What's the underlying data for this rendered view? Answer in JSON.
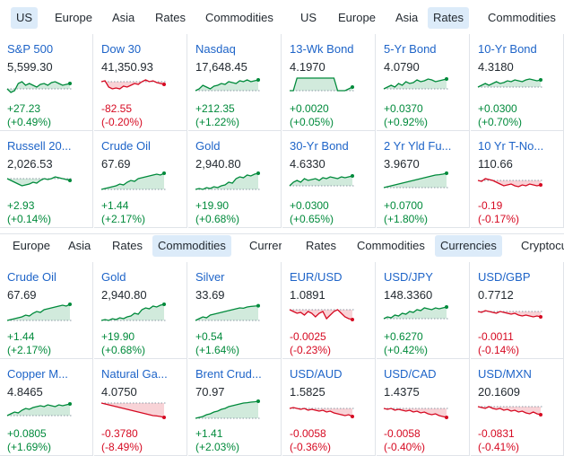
{
  "colors": {
    "up": "#008a3b",
    "down": "#d60a22",
    "tab_active_bg": "#dcebf9",
    "link": "#1e64c8"
  },
  "panels": [
    {
      "tabs": [
        {
          "label": "US",
          "active": true
        },
        {
          "label": "Europe",
          "active": false
        },
        {
          "label": "Asia",
          "active": false
        },
        {
          "label": "Rates",
          "active": false
        },
        {
          "label": "Commodities",
          "active": false
        }
      ],
      "cards": [
        {
          "name": "S&P 500",
          "price": "5,599.30",
          "chg": "+27.23",
          "pct": "(+0.49%)",
          "dir": "up",
          "spark": [
            0.3,
            0.1,
            0.2,
            0.6,
            0.7,
            0.5,
            0.6,
            0.5,
            0.4,
            0.55,
            0.6,
            0.5,
            0.65,
            0.7,
            0.6,
            0.5,
            0.55,
            0.6
          ]
        },
        {
          "name": "Dow 30",
          "price": "41,350.93",
          "chg": "-82.55",
          "pct": "(-0.20%)",
          "dir": "down",
          "spark": [
            0.7,
            0.75,
            0.4,
            0.3,
            0.35,
            0.3,
            0.45,
            0.4,
            0.5,
            0.6,
            0.55,
            0.7,
            0.8,
            0.7,
            0.75,
            0.65,
            0.6,
            0.55
          ]
        },
        {
          "name": "Nasdaq",
          "price": "17,648.45",
          "chg": "+212.35",
          "pct": "(+1.22%)",
          "dir": "up",
          "spark": [
            0.2,
            0.3,
            0.5,
            0.4,
            0.3,
            0.45,
            0.5,
            0.6,
            0.55,
            0.7,
            0.65,
            0.6,
            0.75,
            0.7,
            0.8,
            0.7,
            0.75,
            0.8
          ]
        },
        {
          "name": "Russell 20...",
          "price": "2,026.53",
          "chg": "+2.93",
          "pct": "(+0.14%)",
          "dir": "up",
          "spark": [
            0.7,
            0.6,
            0.5,
            0.4,
            0.3,
            0.35,
            0.4,
            0.5,
            0.45,
            0.6,
            0.7,
            0.65,
            0.7,
            0.8,
            0.75,
            0.7,
            0.65,
            0.6
          ]
        },
        {
          "name": "Crude Oil",
          "price": "67.69",
          "chg": "+1.44",
          "pct": "(+2.17%)",
          "dir": "up",
          "spark": [
            0.1,
            0.15,
            0.2,
            0.25,
            0.3,
            0.4,
            0.35,
            0.5,
            0.6,
            0.55,
            0.7,
            0.75,
            0.8,
            0.85,
            0.9,
            0.95,
            0.9,
            1.0
          ]
        },
        {
          "name": "Gold",
          "price": "2,940.80",
          "chg": "+19.90",
          "pct": "(+0.68%)",
          "dir": "up",
          "spark": [
            0.1,
            0.15,
            0.1,
            0.2,
            0.15,
            0.25,
            0.2,
            0.3,
            0.35,
            0.5,
            0.45,
            0.7,
            0.8,
            0.75,
            0.9,
            0.85,
            0.95,
            1.0
          ]
        }
      ]
    },
    {
      "tabs": [
        {
          "label": "US",
          "active": false
        },
        {
          "label": "Europe",
          "active": false
        },
        {
          "label": "Asia",
          "active": false
        },
        {
          "label": "Rates",
          "active": true
        },
        {
          "label": "Commodities",
          "active": false
        }
      ],
      "cards": [
        {
          "name": "13-Wk Bond",
          "price": "4.1970",
          "chg": "+0.0020",
          "pct": "(+0.05%)",
          "dir": "up",
          "spark": [
            0.2,
            0.2,
            0.9,
            0.9,
            0.9,
            0.9,
            0.9,
            0.9,
            0.9,
            0.9,
            0.9,
            0.9,
            0.9,
            0.2,
            0.2,
            0.2,
            0.3,
            0.4
          ]
        },
        {
          "name": "5-Yr Bond",
          "price": "4.0790",
          "chg": "+0.0370",
          "pct": "(+0.92%)",
          "dir": "up",
          "spark": [
            0.3,
            0.4,
            0.5,
            0.4,
            0.6,
            0.5,
            0.7,
            0.6,
            0.65,
            0.8,
            0.7,
            0.75,
            0.85,
            0.8,
            0.7,
            0.75,
            0.8,
            0.85
          ]
        },
        {
          "name": "10-Yr Bond",
          "price": "4.3180",
          "chg": "+0.0300",
          "pct": "(+0.70%)",
          "dir": "up",
          "spark": [
            0.4,
            0.5,
            0.6,
            0.5,
            0.6,
            0.7,
            0.6,
            0.65,
            0.75,
            0.7,
            0.8,
            0.75,
            0.7,
            0.8,
            0.85,
            0.8,
            0.75,
            0.8
          ]
        },
        {
          "name": "30-Yr Bond",
          "price": "4.6330",
          "chg": "+0.0300",
          "pct": "(+0.65%)",
          "dir": "up",
          "spark": [
            0.3,
            0.5,
            0.6,
            0.5,
            0.7,
            0.6,
            0.65,
            0.7,
            0.6,
            0.75,
            0.7,
            0.8,
            0.75,
            0.7,
            0.8,
            0.75,
            0.8,
            0.85
          ]
        },
        {
          "name": "2 Yr Yld Fu...",
          "price": "3.9670",
          "chg": "+0.0700",
          "pct": "(+1.80%)",
          "dir": "up",
          "spark": [
            0.2,
            0.25,
            0.3,
            0.35,
            0.4,
            0.45,
            0.5,
            0.55,
            0.6,
            0.65,
            0.7,
            0.75,
            0.8,
            0.85,
            0.9,
            0.92,
            0.95,
            1.0
          ]
        },
        {
          "name": "10 Yr T-No...",
          "price": "110.66",
          "chg": "-0.19",
          "pct": "(-0.17%)",
          "dir": "down",
          "spark": [
            0.6,
            0.55,
            0.7,
            0.65,
            0.6,
            0.5,
            0.4,
            0.3,
            0.35,
            0.4,
            0.3,
            0.25,
            0.35,
            0.3,
            0.4,
            0.35,
            0.3,
            0.35
          ]
        }
      ]
    },
    {
      "tabs": [
        {
          "label": "Europe",
          "active": false
        },
        {
          "label": "Asia",
          "active": false
        },
        {
          "label": "Rates",
          "active": false
        },
        {
          "label": "Commodities",
          "active": true
        },
        {
          "label": "Currer",
          "active": false
        }
      ],
      "cards": [
        {
          "name": "Crude Oil",
          "price": "67.69",
          "chg": "+1.44",
          "pct": "(+2.17%)",
          "dir": "up",
          "spark": [
            0.1,
            0.15,
            0.2,
            0.25,
            0.3,
            0.4,
            0.35,
            0.5,
            0.6,
            0.55,
            0.7,
            0.75,
            0.8,
            0.85,
            0.9,
            0.95,
            0.9,
            1.0
          ]
        },
        {
          "name": "Gold",
          "price": "2,940.80",
          "chg": "+19.90",
          "pct": "(+0.68%)",
          "dir": "up",
          "spark": [
            0.1,
            0.15,
            0.1,
            0.2,
            0.15,
            0.25,
            0.2,
            0.3,
            0.35,
            0.5,
            0.45,
            0.7,
            0.8,
            0.75,
            0.9,
            0.85,
            0.95,
            1.0
          ]
        },
        {
          "name": "Silver",
          "price": "33.69",
          "chg": "+0.54",
          "pct": "(+1.64%)",
          "dir": "up",
          "spark": [
            0.1,
            0.2,
            0.3,
            0.25,
            0.4,
            0.45,
            0.5,
            0.55,
            0.6,
            0.65,
            0.7,
            0.75,
            0.8,
            0.78,
            0.85,
            0.88,
            0.9,
            0.92
          ]
        },
        {
          "name": "Copper M...",
          "price": "4.8465",
          "chg": "+0.0805",
          "pct": "(+1.69%)",
          "dir": "up",
          "spark": [
            0.2,
            0.3,
            0.4,
            0.35,
            0.5,
            0.6,
            0.55,
            0.65,
            0.7,
            0.75,
            0.7,
            0.8,
            0.75,
            0.7,
            0.8,
            0.75,
            0.8,
            0.85
          ]
        },
        {
          "name": "Natural Ga...",
          "price": "4.0750",
          "chg": "-0.3780",
          "pct": "(-8.49%)",
          "dir": "down",
          "spark": [
            0.9,
            0.85,
            0.8,
            0.75,
            0.7,
            0.65,
            0.6,
            0.55,
            0.5,
            0.45,
            0.4,
            0.35,
            0.3,
            0.25,
            0.2,
            0.18,
            0.15,
            0.1
          ]
        },
        {
          "name": "Brent Crud...",
          "price": "70.97",
          "chg": "+1.41",
          "pct": "(+2.03%)",
          "dir": "up",
          "spark": [
            0.05,
            0.1,
            0.15,
            0.25,
            0.3,
            0.4,
            0.45,
            0.55,
            0.6,
            0.7,
            0.75,
            0.8,
            0.85,
            0.9,
            0.92,
            0.95,
            0.97,
            1.0
          ]
        }
      ]
    },
    {
      "tabs": [
        {
          "label": "Rates",
          "active": false
        },
        {
          "label": "Commodities",
          "active": false
        },
        {
          "label": "Currencies",
          "active": true
        },
        {
          "label": "Cryptocu",
          "active": false
        }
      ],
      "cards": [
        {
          "name": "EUR/USD",
          "price": "1.0891",
          "chg": "-0.0025",
          "pct": "(-0.23%)",
          "dir": "down",
          "spark": [
            0.7,
            0.6,
            0.5,
            0.55,
            0.4,
            0.6,
            0.5,
            0.3,
            0.5,
            0.6,
            0.2,
            0.4,
            0.6,
            0.7,
            0.5,
            0.3,
            0.2,
            0.15
          ]
        },
        {
          "name": "USD/JPY",
          "price": "148.3360",
          "chg": "+0.6270",
          "pct": "(+0.42%)",
          "dir": "up",
          "spark": [
            0.2,
            0.3,
            0.25,
            0.4,
            0.35,
            0.5,
            0.45,
            0.6,
            0.55,
            0.7,
            0.65,
            0.8,
            0.75,
            0.7,
            0.8,
            0.75,
            0.8,
            0.85
          ]
        },
        {
          "name": "USD/GBP",
          "price": "0.7712",
          "chg": "-0.0011",
          "pct": "(-0.14%)",
          "dir": "down",
          "spark": [
            0.6,
            0.55,
            0.65,
            0.6,
            0.55,
            0.5,
            0.6,
            0.55,
            0.5,
            0.45,
            0.5,
            0.4,
            0.35,
            0.4,
            0.35,
            0.3,
            0.35,
            0.3
          ]
        },
        {
          "name": "USD/AUD",
          "price": "1.5825",
          "chg": "-0.0058",
          "pct": "(-0.36%)",
          "dir": "down",
          "spark": [
            0.6,
            0.65,
            0.6,
            0.55,
            0.6,
            0.5,
            0.55,
            0.5,
            0.45,
            0.5,
            0.4,
            0.45,
            0.35,
            0.3,
            0.25,
            0.2,
            0.25,
            0.15
          ]
        },
        {
          "name": "USD/CAD",
          "price": "1.4375",
          "chg": "-0.0058",
          "pct": "(-0.40%)",
          "dir": "down",
          "spark": [
            0.6,
            0.55,
            0.6,
            0.5,
            0.55,
            0.5,
            0.45,
            0.5,
            0.4,
            0.45,
            0.35,
            0.4,
            0.3,
            0.25,
            0.3,
            0.2,
            0.15,
            0.1
          ]
        },
        {
          "name": "USD/MXN",
          "price": "20.1609",
          "chg": "-0.0831",
          "pct": "(-0.41%)",
          "dir": "down",
          "spark": [
            0.7,
            0.65,
            0.6,
            0.7,
            0.6,
            0.55,
            0.6,
            0.5,
            0.55,
            0.45,
            0.5,
            0.4,
            0.45,
            0.35,
            0.3,
            0.4,
            0.3,
            0.25
          ]
        }
      ]
    }
  ]
}
